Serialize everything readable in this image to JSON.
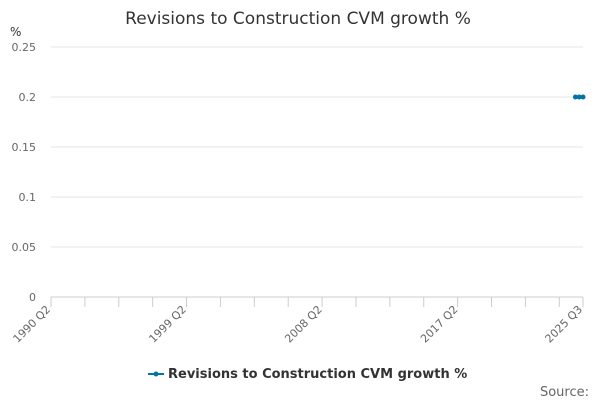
{
  "chart_data": {
    "type": "line",
    "title": "Revisions to Construction CVM growth %",
    "ylabel": "%",
    "xlabel": "",
    "x_tick_labels": [
      "1990 Q2",
      "1999 Q2",
      "2008 Q2",
      "2017 Q2",
      "2025 Q3"
    ],
    "y_tick_labels": [
      "0",
      "0.05",
      "0.1",
      "0.15",
      "0.2",
      "0.25"
    ],
    "ylim": [
      0,
      0.25
    ],
    "xlim": [
      "1990 Q2",
      "2025 Q3"
    ],
    "grid": true,
    "legend_position": "bottom",
    "series": [
      {
        "name": "Revisions to Construction CVM growth %",
        "color": "#0075a3",
        "x": [
          "2025 Q1",
          "2025 Q2",
          "2025 Q3"
        ],
        "values": [
          0.2,
          0.2,
          0.2
        ]
      }
    ]
  },
  "source_label": "Source:"
}
